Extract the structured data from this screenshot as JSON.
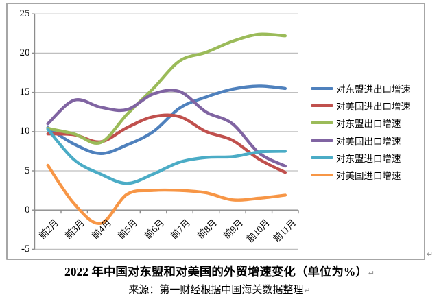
{
  "caption": {
    "title": "2022 年中国对东盟和对美国的外贸增速变化（单位为%）",
    "source": "来源：第一财经根据中国海关数据整理",
    "pilcrow": "↵"
  },
  "chart_data": {
    "type": "line",
    "smooth": true,
    "x": [
      "前2月",
      "前3月",
      "前4月",
      "前5月",
      "前6月",
      "前7月",
      "前8月",
      "前9月",
      "前10月",
      "前11月"
    ],
    "series": [
      {
        "name": "对东盟进出口增速",
        "color": "#4F81BD",
        "values": [
          10.5,
          8.4,
          7.2,
          8.3,
          10.0,
          13.0,
          14.4,
          15.4,
          15.8,
          15.5
        ]
      },
      {
        "name": "对美国进出口增速",
        "color": "#C0504D",
        "values": [
          9.7,
          9.6,
          8.7,
          10.5,
          11.9,
          11.9,
          10.0,
          8.9,
          6.5,
          4.8
        ]
      },
      {
        "name": "对东盟出口增速",
        "color": "#9BBB59",
        "values": [
          10.4,
          9.7,
          8.6,
          12.2,
          15.5,
          19.0,
          20.1,
          21.5,
          22.4,
          22.2
        ]
      },
      {
        "name": "对美国出口增速",
        "color": "#8064A2",
        "values": [
          11.0,
          14.0,
          13.1,
          12.8,
          14.8,
          15.1,
          12.5,
          11.0,
          7.3,
          5.6
        ]
      },
      {
        "name": "对东盟进口增速",
        "color": "#4BACC6",
        "values": [
          10.3,
          6.4,
          4.6,
          3.4,
          4.6,
          6.1,
          6.7,
          6.8,
          7.4,
          7.5
        ]
      },
      {
        "name": "对美国进口增速",
        "color": "#F79646",
        "values": [
          5.7,
          0.8,
          -1.7,
          2.0,
          2.5,
          2.5,
          2.2,
          1.3,
          1.5,
          1.9
        ]
      }
    ],
    "ylim": [
      -5,
      25
    ],
    "ytick_step": 5,
    "grid": true,
    "legend_position": "right",
    "grid_color": "#bfbfbf",
    "axis_color": "#8c8c8c",
    "frame_color": "#a6a6a6"
  }
}
